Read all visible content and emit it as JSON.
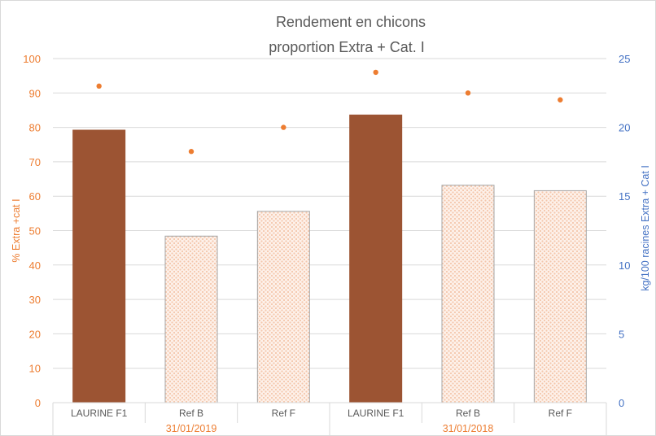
{
  "chart_data": {
    "type": "bar",
    "title_lines": [
      "Rendement en chicons",
      "proportion Extra + Cat. I"
    ],
    "ylabel_left": "% Extra +cat I",
    "ylabel_right": "kg/100 racines Extra + Cat I",
    "ylim_left": [
      0,
      100
    ],
    "ylim_right": [
      0,
      25
    ],
    "yticks_left": [
      "0",
      "10",
      "20",
      "30",
      "40",
      "50",
      "60",
      "70",
      "80",
      "90",
      "100"
    ],
    "yticks_right": [
      "0",
      "5",
      "10",
      "15",
      "20",
      "25"
    ],
    "groups": [
      {
        "label": "31/01/2019",
        "categories": [
          "LAURINE F1",
          "Ref B",
          "Ref F"
        ]
      },
      {
        "label": "31/01/2018",
        "categories": [
          "LAURINE F1",
          "Ref B",
          "Ref F"
        ]
      }
    ],
    "series": [
      {
        "axis": "right",
        "kind": "bar",
        "values": [
          19.8,
          12.1,
          13.9,
          20.9,
          15.8,
          15.4
        ],
        "highlight": [
          true,
          false,
          false,
          true,
          false,
          false
        ]
      },
      {
        "axis": "left",
        "kind": "scatter",
        "values": [
          92,
          73,
          80,
          96,
          90,
          88
        ]
      }
    ],
    "colors": {
      "bar_highlight": "#9C5433",
      "bar_pattern": "#F4C7AC",
      "bar_outline": "#A6A6A6",
      "points": "#ED7D31",
      "left_axis": "#ED7D31",
      "right_axis": "#4472C4",
      "grid": "#D9D9D9"
    },
    "grid": true
  }
}
